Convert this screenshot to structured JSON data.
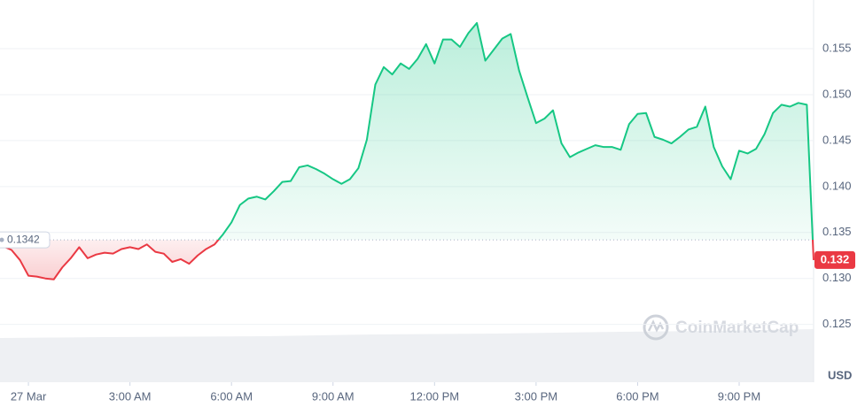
{
  "chart_data": {
    "type": "line",
    "x": [
      -0.75,
      -0.5,
      -0.25,
      0,
      0.25,
      0.5,
      0.75,
      1,
      1.25,
      1.5,
      1.75,
      2,
      2.25,
      2.5,
      2.75,
      3,
      3.25,
      3.5,
      3.75,
      4,
      4.25,
      4.5,
      4.75,
      5,
      5.25,
      5.5,
      5.75,
      6,
      6.25,
      6.5,
      6.75,
      7,
      7.25,
      7.5,
      7.75,
      8,
      8.25,
      8.5,
      8.75,
      9,
      9.25,
      9.5,
      9.75,
      10,
      10.25,
      10.5,
      10.75,
      11,
      11.25,
      11.5,
      11.75,
      12,
      12.25,
      12.5,
      12.75,
      13,
      13.25,
      13.5,
      13.75,
      14,
      14.25,
      14.5,
      14.75,
      15,
      15.25,
      15.5,
      15.75,
      16,
      16.25,
      16.5,
      16.75,
      17,
      17.25,
      17.5,
      17.75,
      18,
      18.25,
      18.5,
      18.75,
      19,
      19.25,
      19.5,
      19.75,
      20,
      20.25,
      20.5,
      20.75,
      21,
      21.25,
      21.5,
      21.75,
      22,
      22.25,
      22.5,
      22.75,
      23,
      23.2
    ],
    "values": [
      0.1335,
      0.1331,
      0.132,
      0.1303,
      0.1302,
      0.13,
      0.1299,
      0.1312,
      0.1322,
      0.1334,
      0.1322,
      0.1326,
      0.1328,
      0.1327,
      0.1332,
      0.1334,
      0.1332,
      0.1337,
      0.1329,
      0.1327,
      0.1318,
      0.1321,
      0.1316,
      0.1325,
      0.1332,
      0.1337,
      0.1348,
      0.1361,
      0.138,
      0.1387,
      0.1389,
      0.1386,
      0.1395,
      0.1405,
      0.1406,
      0.1421,
      0.1423,
      0.1419,
      0.1414,
      0.1408,
      0.1403,
      0.1408,
      0.142,
      0.1451,
      0.1511,
      0.153,
      0.1522,
      0.1534,
      0.1528,
      0.1539,
      0.1555,
      0.1534,
      0.156,
      0.156,
      0.1552,
      0.1567,
      0.1578,
      0.1537,
      0.1549,
      0.1561,
      0.1566,
      0.1526,
      0.1497,
      0.1469,
      0.1474,
      0.1483,
      0.1447,
      0.1432,
      0.1437,
      0.1441,
      0.1445,
      0.1443,
      0.1443,
      0.144,
      0.1468,
      0.1479,
      0.148,
      0.1454,
      0.1451,
      0.1447,
      0.1454,
      0.1462,
      0.1465,
      0.1487,
      0.1443,
      0.1422,
      0.1408,
      0.1439,
      0.1436,
      0.1441,
      0.1457,
      0.148,
      0.1489,
      0.1487,
      0.1491,
      0.1489,
      0.132
    ],
    "up_color": "#16c784",
    "down_color": "#ea3943",
    "baseline": 0.1342,
    "price_tag": 0.132,
    "unit": "USD",
    "watermark": "CoinMarketCap",
    "xlim": [
      -0.84,
      23.2
    ],
    "xticks": [
      {
        "value": 0,
        "label": "27 Mar"
      },
      {
        "value": 3,
        "label": "3:00 AM"
      },
      {
        "value": 6,
        "label": "6:00 AM"
      },
      {
        "value": 9,
        "label": "9:00 AM"
      },
      {
        "value": 12,
        "label": "12:00 PM"
      },
      {
        "value": 15,
        "label": "3:00 PM"
      },
      {
        "value": 18,
        "label": "6:00 PM"
      },
      {
        "value": 21,
        "label": "9:00 PM"
      }
    ],
    "ylim": [
      0.1189,
      0.1603
    ],
    "yticks": [
      0.125,
      {
        "value": 0.13,
        "label": "0.130"
      },
      0.135,
      {
        "value": 0.14,
        "label": "0.140"
      },
      0.145,
      {
        "value": 0.15,
        "label": "0.150"
      },
      0.155
    ],
    "grid": true
  }
}
